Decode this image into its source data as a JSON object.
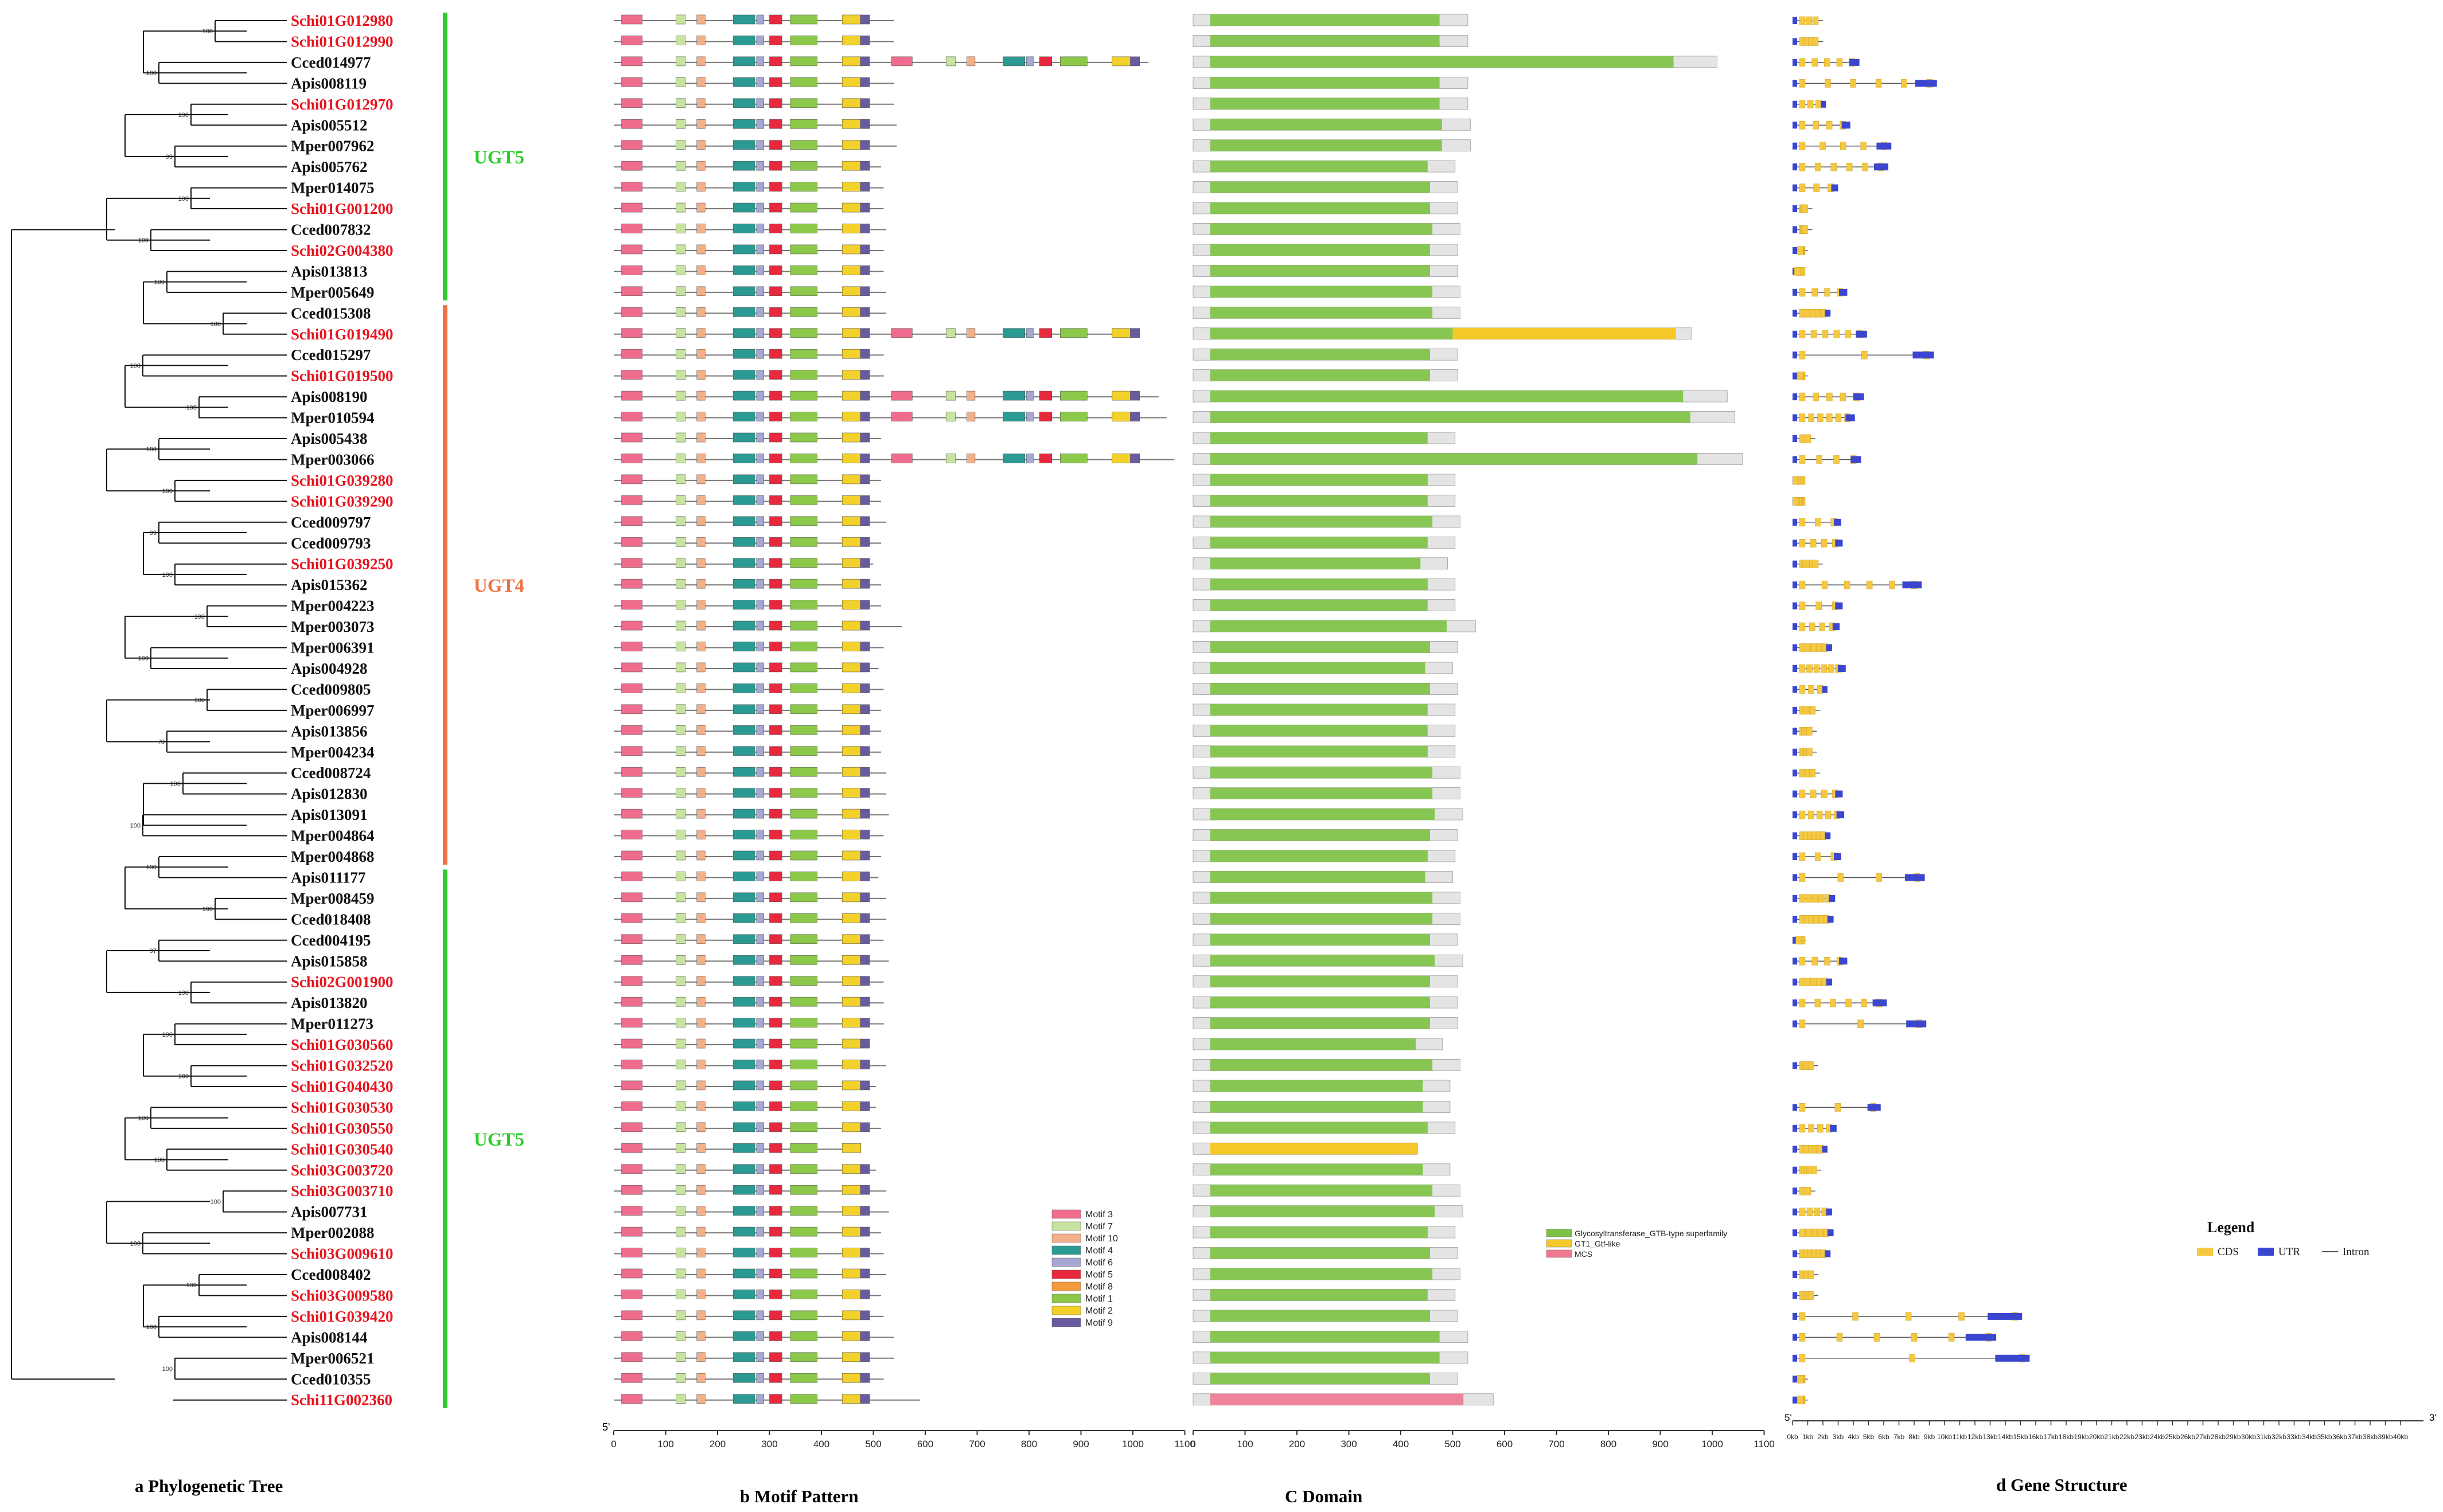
{
  "panels": {
    "a": "a Phylogenetic Tree",
    "b": "b Motif Pattern",
    "c": "C  Domain",
    "d": "d Gene  Structure"
  },
  "groups": [
    {
      "label": "UGT5",
      "color": "#2ecc2e",
      "first": 0,
      "last": 13
    },
    {
      "label": "UGT4",
      "color": "#f07040",
      "first": 14,
      "last": 40
    },
    {
      "label": "UGT5",
      "color": "#2ecc2e",
      "first": 41,
      "last": 66
    }
  ],
  "genes": [
    {
      "name": "Schi01G012980",
      "red": true,
      "len": 540
    },
    {
      "name": "Schi01G012990",
      "red": true,
      "len": 540
    },
    {
      "name": "Cced014977",
      "red": false,
      "len": 1030
    },
    {
      "name": "Apis008119",
      "red": false,
      "len": 540
    },
    {
      "name": "Schi01G012970",
      "red": true,
      "len": 540
    },
    {
      "name": "Apis005512",
      "red": false,
      "len": 545
    },
    {
      "name": "Mper007962",
      "red": false,
      "len": 545
    },
    {
      "name": "Apis005762",
      "red": false,
      "len": 515
    },
    {
      "name": "Mper014075",
      "red": false,
      "len": 520
    },
    {
      "name": "Schi01G001200",
      "red": true,
      "len": 520
    },
    {
      "name": "Cced007832",
      "red": false,
      "len": 525
    },
    {
      "name": "Schi02G004380",
      "red": true,
      "len": 520
    },
    {
      "name": "Apis013813",
      "red": false,
      "len": 520
    },
    {
      "name": "Mper005649",
      "red": false,
      "len": 525
    },
    {
      "name": "Cced015308",
      "red": false,
      "len": 525
    },
    {
      "name": "Schi01G019490",
      "red": true,
      "len": 980
    },
    {
      "name": "Cced015297",
      "red": false,
      "len": 520
    },
    {
      "name": "Schi01G019500",
      "red": true,
      "len": 520
    },
    {
      "name": "Apis008190",
      "red": false,
      "len": 1050
    },
    {
      "name": "Mper010594",
      "red": false,
      "len": 1065
    },
    {
      "name": "Apis005438",
      "red": false,
      "len": 515
    },
    {
      "name": "Mper003066",
      "red": false,
      "len": 1080
    },
    {
      "name": "Schi01G039280",
      "red": true,
      "len": 515
    },
    {
      "name": "Schi01G039290",
      "red": true,
      "len": 515
    },
    {
      "name": "Cced009797",
      "red": false,
      "len": 525
    },
    {
      "name": "Cced009793",
      "red": false,
      "len": 515
    },
    {
      "name": "Schi01G039250",
      "red": true,
      "len": 500
    },
    {
      "name": "Apis015362",
      "red": false,
      "len": 515
    },
    {
      "name": "Mper004223",
      "red": false,
      "len": 515
    },
    {
      "name": "Mper003073",
      "red": false,
      "len": 555
    },
    {
      "name": "Mper006391",
      "red": false,
      "len": 520
    },
    {
      "name": "Apis004928",
      "red": false,
      "len": 510
    },
    {
      "name": "Cced009805",
      "red": false,
      "len": 520
    },
    {
      "name": "Mper006997",
      "red": false,
      "len": 515
    },
    {
      "name": "Apis013856",
      "red": false,
      "len": 515
    },
    {
      "name": "Mper004234",
      "red": false,
      "len": 515
    },
    {
      "name": "Cced008724",
      "red": false,
      "len": 525
    },
    {
      "name": "Apis012830",
      "red": false,
      "len": 525
    },
    {
      "name": "Apis013091",
      "red": false,
      "len": 530
    },
    {
      "name": "Mper004864",
      "red": false,
      "len": 520
    },
    {
      "name": "Mper004868",
      "red": false,
      "len": 515
    },
    {
      "name": "Apis011177",
      "red": false,
      "len": 510
    },
    {
      "name": "Mper008459",
      "red": false,
      "len": 525
    },
    {
      "name": "Cced018408",
      "red": false,
      "len": 525
    },
    {
      "name": "Cced004195",
      "red": false,
      "len": 520
    },
    {
      "name": "Apis015858",
      "red": false,
      "len": 530
    },
    {
      "name": "Schi02G001900",
      "red": true,
      "len": 520
    },
    {
      "name": "Apis013820",
      "red": false,
      "len": 520
    },
    {
      "name": "Mper011273",
      "red": false,
      "len": 520
    },
    {
      "name": "Schi01G030560",
      "red": true,
      "len": 490
    },
    {
      "name": "Schi01G032520",
      "red": true,
      "len": 525
    },
    {
      "name": "Schi01G040430",
      "red": true,
      "len": 505
    },
    {
      "name": "Schi01G030530",
      "red": true,
      "len": 505
    },
    {
      "name": "Schi01G030550",
      "red": true,
      "len": 515
    },
    {
      "name": "Schi01G030540",
      "red": true,
      "len": 440
    },
    {
      "name": "Schi03G003720",
      "red": true,
      "len": 505
    },
    {
      "name": "Schi03G003710",
      "red": true,
      "len": 525
    },
    {
      "name": "Apis007731",
      "red": false,
      "len": 530
    },
    {
      "name": "Mper002088",
      "red": false,
      "len": 515
    },
    {
      "name": "Schi03G009610",
      "red": true,
      "len": 520
    },
    {
      "name": "Cced008402",
      "red": false,
      "len": 525
    },
    {
      "name": "Schi03G009580",
      "red": true,
      "len": 515
    },
    {
      "name": "Schi01G039420",
      "red": true,
      "len": 520
    },
    {
      "name": "Apis008144",
      "red": false,
      "len": 540
    },
    {
      "name": "Mper006521",
      "red": false,
      "len": 540
    },
    {
      "name": "Cced010355",
      "red": false,
      "len": 520
    },
    {
      "name": "Schi11G002360",
      "red": true,
      "len": 590
    }
  ],
  "motif_legend": [
    "Motif 3",
    "Motif 7",
    "Motif 10",
    "Motif 4",
    "Motif 6",
    "Motif 5",
    "Motif 8",
    "Motif 1",
    "Motif 2",
    "Motif 9"
  ],
  "motif_colors": {
    "Motif 3": "#f06c8c",
    "Motif 7": "#c6e3a0",
    "Motif 10": "#f2b08a",
    "Motif 4": "#2a9a93",
    "Motif 6": "#a7a7d4",
    "Motif 5": "#e8283c",
    "Motif 8": "#f39a3a",
    "Motif 1": "#8cc84a",
    "Motif 2": "#f2d12a",
    "Motif 9": "#6a5a9e"
  },
  "domain_legend": [
    "Glycosyltransferase_GTB-type superfamily",
    "GT1_Gtf-like",
    "MCS"
  ],
  "domain_colors": {
    "Glycosyltransferase_GTB-type superfamily": "#7dc242",
    "GT1_Gtf-like": "#f5c82a",
    "MCS": "#f07890"
  },
  "gene_legend": {
    "title": "Legend",
    "items": [
      "CDS",
      "UTR",
      "Intron"
    ]
  },
  "gene_colors": {
    "CDS": "#f5c842",
    "UTR": "#3a46d0",
    "Intron": "#555555"
  },
  "axis_ticks": [
    "0",
    "100",
    "200",
    "300",
    "400",
    "500",
    "600",
    "700",
    "800",
    "900",
    "1000",
    "1100"
  ],
  "domain_ticks": [
    "0",
    "100",
    "200",
    "300",
    "400",
    "500",
    "600",
    "700",
    "800",
    "900",
    "1000",
    "1100"
  ],
  "gene_axis": {
    "start": "5'",
    "end": "3'",
    "ticks": [
      "0kb",
      "1kb",
      "2kb",
      "3kb",
      "4kb",
      "5kb",
      "6kb",
      "7kb",
      "8kb",
      "9kb",
      "10kb",
      "11kb",
      "12kb",
      "13kb",
      "14kb",
      "15kb",
      "16kb",
      "17kb",
      "18kb",
      "19kb",
      "20kb",
      "21kb",
      "22kb",
      "23kb",
      "24kb",
      "25kb",
      "26kb",
      "27kb",
      "28kb",
      "29kb",
      "30kb",
      "31kb",
      "32kb",
      "33kb",
      "34kb",
      "35kb",
      "36kb",
      "37kb",
      "38kb",
      "39kb",
      "40kb"
    ]
  },
  "axis_ends": {
    "five": "5'",
    "three": "3'"
  },
  "bootstrap": [
    "100",
    "100",
    "100",
    "100",
    "100",
    "100",
    "99",
    "100",
    "100",
    "100",
    "100",
    "97",
    "100",
    "99",
    "100",
    "97",
    "100",
    "100",
    "100",
    "84",
    "100",
    "100",
    "100",
    "100",
    "99",
    "100",
    "100",
    "100",
    "100",
    "80",
    "100",
    "100",
    "100",
    "100",
    "78",
    "100",
    "100",
    "100",
    "100",
    "100",
    "100",
    "100",
    "100",
    "93",
    "97",
    "100",
    "100",
    "100",
    "100",
    "100",
    "100",
    "100",
    "100",
    "100",
    "100",
    "100",
    "100",
    "100",
    "100",
    "100",
    "100",
    "100",
    "100",
    "100",
    "100",
    "100"
  ]
}
